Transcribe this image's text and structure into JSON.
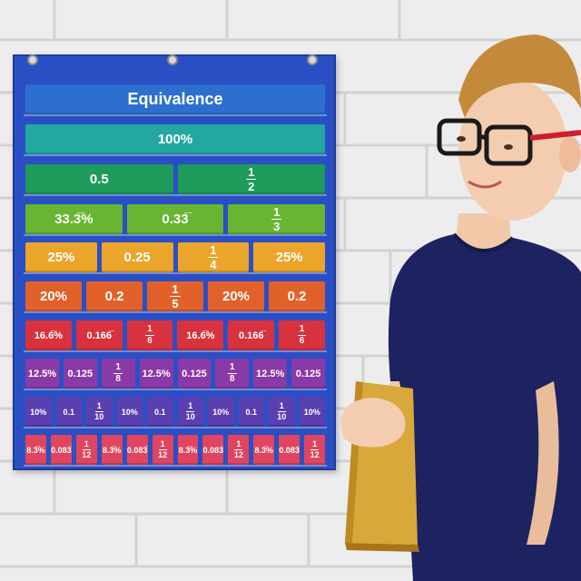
{
  "chart": {
    "title": "Equivalence",
    "row_colors": [
      "#2d6fce",
      "#22a8a0",
      "#1e9a5a",
      "#67b531",
      "#eaa52a",
      "#e2612a",
      "#d8323f",
      "#8a3aa6",
      "#5a3fb0",
      "#e04560"
    ],
    "rows": [
      {
        "cards": [
          {
            "t": "100%"
          }
        ]
      },
      {
        "cards": [
          {
            "t": "0.5"
          },
          {
            "n": "1",
            "d": "2"
          }
        ]
      },
      {
        "cards": [
          {
            "t": "33.3̅%"
          },
          {
            "t": "0.33̅"
          },
          {
            "n": "1",
            "d": "3"
          }
        ]
      },
      {
        "cards": [
          {
            "t": "25%"
          },
          {
            "t": "0.25"
          },
          {
            "n": "1",
            "d": "4"
          },
          {
            "t": "25%"
          }
        ]
      },
      {
        "cards": [
          {
            "t": "20%"
          },
          {
            "t": "0.2"
          },
          {
            "n": "1",
            "d": "5"
          },
          {
            "t": "20%"
          },
          {
            "t": "0.2"
          }
        ]
      },
      {
        "cards": [
          {
            "t": "16.6̅%"
          },
          {
            "t": "0.166̅"
          },
          {
            "n": "1",
            "d": "6"
          },
          {
            "t": "16.6̅%"
          },
          {
            "t": "0.166̅"
          },
          {
            "n": "1",
            "d": "6"
          }
        ]
      },
      {
        "cards": [
          {
            "t": "12.5%"
          },
          {
            "t": "0.125"
          },
          {
            "n": "1",
            "d": "8"
          },
          {
            "t": "12.5%"
          },
          {
            "t": "0.125"
          },
          {
            "n": "1",
            "d": "8"
          },
          {
            "t": "12.5%"
          },
          {
            "t": "0.125"
          }
        ]
      },
      {
        "cards": [
          {
            "t": "10%"
          },
          {
            "t": "0.1"
          },
          {
            "n": "1",
            "d": "10"
          },
          {
            "t": "10%"
          },
          {
            "t": "0.1"
          },
          {
            "n": "1",
            "d": "10"
          },
          {
            "t": "10%"
          },
          {
            "t": "0.1"
          },
          {
            "n": "1",
            "d": "10"
          },
          {
            "t": "10%"
          }
        ]
      },
      {
        "cards": [
          {
            "t": "8.3̅%"
          },
          {
            "t": "0.083̅"
          },
          {
            "n": "1",
            "d": "12"
          },
          {
            "t": "8.3̅%"
          },
          {
            "t": "0.083̅"
          },
          {
            "n": "1",
            "d": "12"
          },
          {
            "t": "8.3̅%"
          },
          {
            "t": "0.083̅"
          },
          {
            "n": "1",
            "d": "12"
          },
          {
            "t": "8.3̅%"
          },
          {
            "t": "0.083̅"
          },
          {
            "n": "1",
            "d": "12"
          }
        ]
      }
    ]
  },
  "colors": {
    "wall": "#ececec",
    "pocket_chart": "#2a4fc4",
    "shirt": "#1c2360",
    "book": "#d9a83a",
    "glasses": "#c8202e"
  }
}
